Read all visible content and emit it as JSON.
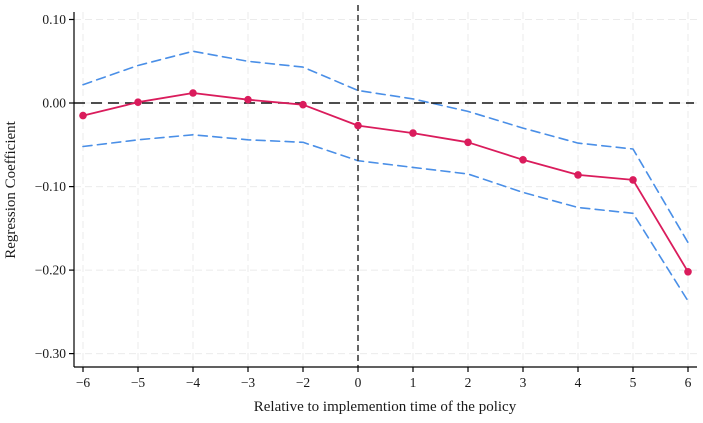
{
  "figure": {
    "background": "#ffffff"
  },
  "chart_data": {
    "type": "line",
    "title": "",
    "xlabel": "Relative to implemention time of the policy",
    "ylabel": "Regression Coefficient",
    "x_tick_labels": [
      "−6",
      "−5",
      "−4",
      "−3",
      "−2",
      "0",
      "1",
      "2",
      "3",
      "4",
      "5",
      "6"
    ],
    "y_ticks": [
      0.1,
      0.0,
      -0.1,
      -0.2,
      -0.3
    ],
    "y_tick_labels": [
      "0.10",
      "0.00",
      "−0.10",
      "−0.20",
      "−0.30"
    ],
    "ylim": [
      -0.316,
      0.109
    ],
    "grid": true,
    "legend": "none",
    "reference_lines": {
      "horizontal_y": 0,
      "vertical_at_label": "0"
    },
    "colors": {
      "coefficient": "#da1c5c",
      "confidence_band": "#4a8fe7",
      "zero_line": "#141414",
      "vertical_line": "#3d3d3d",
      "gridline": "#ebebeb",
      "axis": "#000000"
    },
    "series": [
      {
        "name": "coefficient",
        "style": "solid-line-with-markers",
        "color": "#da1c5c",
        "values": [
          -0.015,
          0.001,
          0.012,
          0.004,
          -0.002,
          -0.027,
          -0.036,
          -0.047,
          -0.068,
          -0.086,
          -0.092,
          -0.202
        ]
      },
      {
        "name": "ci-upper",
        "style": "dashed-line",
        "color": "#4a8fe7",
        "values": [
          0.022,
          0.045,
          0.062,
          0.05,
          0.043,
          0.015,
          0.005,
          -0.01,
          -0.03,
          -0.048,
          -0.055,
          -0.167
        ]
      },
      {
        "name": "ci-lower",
        "style": "dashed-line",
        "color": "#4a8fe7",
        "values": [
          -0.052,
          -0.044,
          -0.038,
          -0.044,
          -0.047,
          -0.069,
          -0.077,
          -0.085,
          -0.107,
          -0.125,
          -0.132,
          -0.237
        ]
      }
    ]
  }
}
